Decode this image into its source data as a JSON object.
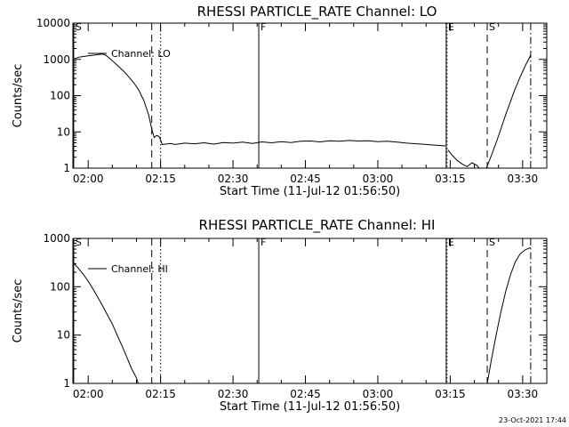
{
  "footer": {
    "timestamp": "23-Oct-2021 17:44"
  },
  "chart_data": [
    {
      "type": "line",
      "title": "RHESSI PARTICLE_RATE Channel: LO",
      "xlabel": "Start Time (11-Jul-12 01:56:50)",
      "ylabel": "Counts/sec",
      "yscale": "log",
      "xlim": [
        "01:56:50",
        "03:35:00"
      ],
      "ylim": [
        1,
        10000
      ],
      "xticks": [
        "02:00",
        "02:15",
        "02:30",
        "02:45",
        "03:00",
        "03:15",
        "03:30"
      ],
      "yticks": [
        {
          "value": 1,
          "label": "1"
        },
        {
          "value": 10,
          "label": "10"
        },
        {
          "value": 100,
          "label": "100"
        },
        {
          "value": 1000,
          "label": "1000"
        },
        {
          "value": 10000,
          "label": "10000"
        }
      ],
      "legend": {
        "entry": "Channel: LO",
        "placement": "top-left"
      },
      "markers": [
        {
          "label": "S",
          "time": "01:57:00",
          "style": "solid"
        },
        {
          "label": "",
          "time": "02:13:10",
          "style": "dashed"
        },
        {
          "label": "",
          "time": "02:15:00",
          "style": "dotted"
        },
        {
          "label": "F",
          "time": "02:35:20",
          "style": "solid"
        },
        {
          "label": "E",
          "time": "03:14:10",
          "style": "solid"
        },
        {
          "label": "",
          "time": "03:14:20",
          "style": "dotted"
        },
        {
          "label": "S",
          "time": "03:22:40",
          "style": "dashed"
        },
        {
          "label": "",
          "time": "03:31:40",
          "style": "dashdot"
        }
      ],
      "series": [
        {
          "segments": [
            [
              [
                "01:56:50",
                1000
              ],
              [
                "01:58:00",
                1150
              ],
              [
                "01:59:00",
                1200
              ],
              [
                "02:00:00",
                1250
              ],
              [
                "02:01:00",
                1300
              ],
              [
                "02:02:00",
                1350
              ],
              [
                "02:03:00",
                1400
              ],
              [
                "02:03:40",
                1300
              ],
              [
                "02:04:30",
                1050
              ],
              [
                "02:05:30",
                800
              ],
              [
                "02:06:30",
                600
              ],
              [
                "02:07:30",
                450
              ],
              [
                "02:08:30",
                320
              ],
              [
                "02:09:30",
                220
              ],
              [
                "02:10:30",
                140
              ],
              [
                "02:11:30",
                75
              ],
              [
                "02:12:30",
                30
              ],
              [
                "02:13:10",
                12
              ],
              [
                "02:13:40",
                7
              ],
              [
                "02:14:10",
                8
              ],
              [
                "02:14:40",
                7.5
              ],
              [
                "02:15:00",
                6
              ],
              [
                "02:15:20",
                4.5
              ],
              [
                "02:16:00",
                4.6
              ],
              [
                "02:17:00",
                4.8
              ],
              [
                "02:18:00",
                4.5
              ],
              [
                "02:20:00",
                4.9
              ],
              [
                "02:22:00",
                4.7
              ],
              [
                "02:24:00",
                5.0
              ],
              [
                "02:26:00",
                4.6
              ],
              [
                "02:28:00",
                5.1
              ],
              [
                "02:30:00",
                4.9
              ],
              [
                "02:32:00",
                5.2
              ],
              [
                "02:34:00",
                4.8
              ],
              [
                "02:36:00",
                5.3
              ],
              [
                "02:38:00",
                5.0
              ],
              [
                "02:40:00",
                5.4
              ],
              [
                "02:42:00",
                5.1
              ],
              [
                "02:44:00",
                5.5
              ],
              [
                "02:46:00",
                5.6
              ],
              [
                "02:48:00",
                5.3
              ],
              [
                "02:50:00",
                5.7
              ],
              [
                "02:52:00",
                5.5
              ],
              [
                "02:54:00",
                5.8
              ],
              [
                "02:56:00",
                5.6
              ],
              [
                "02:58:00",
                5.7
              ],
              [
                "03:00:00",
                5.4
              ],
              [
                "03:02:00",
                5.5
              ],
              [
                "03:04:00",
                5.2
              ],
              [
                "03:06:00",
                4.9
              ],
              [
                "03:08:00",
                4.7
              ],
              [
                "03:10:00",
                4.5
              ],
              [
                "03:12:00",
                4.3
              ],
              [
                "03:14:00",
                4.1
              ]
            ],
            [
              [
                "03:14:30",
                3.2
              ],
              [
                "03:15:30",
                2.2
              ],
              [
                "03:16:30",
                1.6
              ],
              [
                "03:17:30",
                1.3
              ],
              [
                "03:18:30",
                1.1
              ],
              [
                "03:19:30",
                1.4
              ],
              [
                "03:20:30",
                1.2
              ],
              [
                "03:21:00",
                1.0
              ]
            ],
            [
              [
                "03:22:30",
                1.0
              ],
              [
                "03:23:30",
                2.2
              ],
              [
                "03:24:30",
                5
              ],
              [
                "03:25:30",
                12
              ],
              [
                "03:26:30",
                30
              ],
              [
                "03:27:30",
                70
              ],
              [
                "03:28:30",
                160
              ],
              [
                "03:29:30",
                330
              ],
              [
                "03:30:30",
                650
              ],
              [
                "03:31:40",
                1300
              ]
            ]
          ]
        }
      ]
    },
    {
      "type": "line",
      "title": "RHESSI PARTICLE_RATE Channel: HI",
      "xlabel": "Start Time (11-Jul-12 01:56:50)",
      "ylabel": "Counts/sec",
      "yscale": "log",
      "xlim": [
        "01:56:50",
        "03:35:00"
      ],
      "ylim": [
        1,
        1000
      ],
      "xticks": [
        "02:00",
        "02:15",
        "02:30",
        "02:45",
        "03:00",
        "03:15",
        "03:30"
      ],
      "yticks": [
        {
          "value": 1,
          "label": "1"
        },
        {
          "value": 10,
          "label": "10"
        },
        {
          "value": 100,
          "label": "100"
        },
        {
          "value": 1000,
          "label": "1000"
        }
      ],
      "legend": {
        "entry": "Channel: HI",
        "placement": "top-left"
      },
      "markers": [
        {
          "label": "S",
          "time": "01:57:00",
          "style": "solid"
        },
        {
          "label": "",
          "time": "02:13:10",
          "style": "dashed"
        },
        {
          "label": "",
          "time": "02:15:00",
          "style": "dotted"
        },
        {
          "label": "F",
          "time": "02:35:20",
          "style": "solid"
        },
        {
          "label": "E",
          "time": "03:14:10",
          "style": "solid"
        },
        {
          "label": "",
          "time": "03:14:20",
          "style": "dotted"
        },
        {
          "label": "S",
          "time": "03:22:40",
          "style": "dashed"
        },
        {
          "label": "",
          "time": "03:31:40",
          "style": "dashdot"
        }
      ],
      "series": [
        {
          "segments": [
            [
              [
                "01:56:50",
                320
              ],
              [
                "01:58:00",
                240
              ],
              [
                "01:59:00",
                180
              ],
              [
                "02:00:00",
                130
              ],
              [
                "02:01:00",
                90
              ],
              [
                "02:02:00",
                60
              ],
              [
                "02:03:00",
                40
              ],
              [
                "02:04:00",
                26
              ],
              [
                "02:05:00",
                17
              ],
              [
                "02:06:00",
                10
              ],
              [
                "02:07:00",
                6
              ],
              [
                "02:08:00",
                3.5
              ],
              [
                "02:09:00",
                2
              ],
              [
                "02:10:00",
                1.3
              ],
              [
                "02:10:20",
                1.0
              ]
            ],
            [
              [
                "03:22:40",
                1.0
              ],
              [
                "03:23:30",
                3
              ],
              [
                "03:24:30",
                10
              ],
              [
                "03:25:30",
                30
              ],
              [
                "03:26:30",
                80
              ],
              [
                "03:27:30",
                180
              ],
              [
                "03:28:30",
                330
              ],
              [
                "03:29:30",
                480
              ],
              [
                "03:30:30",
                580
              ],
              [
                "03:31:40",
                650
              ]
            ]
          ]
        }
      ]
    }
  ]
}
